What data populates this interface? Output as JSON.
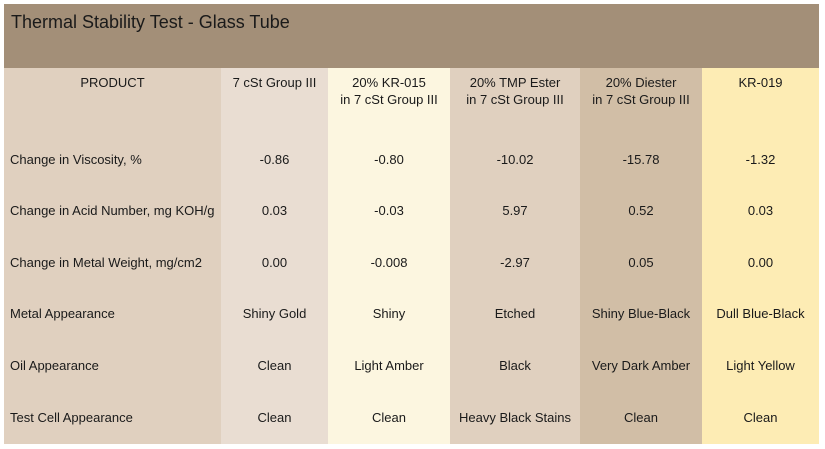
{
  "title": "Thermal Stability Test - Glass Tube",
  "headers": [
    [
      "PRODUCT"
    ],
    [
      "7 cSt Group III"
    ],
    [
      "20% KR-015",
      "in 7 cSt Group III"
    ],
    [
      "20% TMP Ester",
      "in 7 cSt Group III"
    ],
    [
      "20% Diester",
      "in 7 cSt Group III"
    ],
    [
      "KR-019"
    ]
  ],
  "rows": [
    [
      "Change in Viscosity, %",
      "-0.86",
      "-0.80",
      "-10.02",
      "-15.78",
      "-1.32"
    ],
    [
      "Change in Acid Number, mg KOH/g",
      "0.03",
      "-0.03",
      "5.97",
      "0.52",
      "0.03"
    ],
    [
      "Change in Metal Weight, mg/cm2",
      "0.00",
      "-0.008",
      "-2.97",
      "0.05",
      "0.00"
    ],
    [
      "Metal Appearance",
      "Shiny Gold",
      "Shiny",
      "Etched",
      "Shiny Blue-Black",
      "Dull Blue-Black"
    ],
    [
      "Oil Appearance",
      "Clean",
      "Light Amber",
      "Black",
      "Very Dark Amber",
      "Light Yellow"
    ],
    [
      "Test Cell Appearance",
      "Clean",
      "Clean",
      "Heavy Black Stains",
      "Clean",
      "Clean"
    ]
  ]
}
